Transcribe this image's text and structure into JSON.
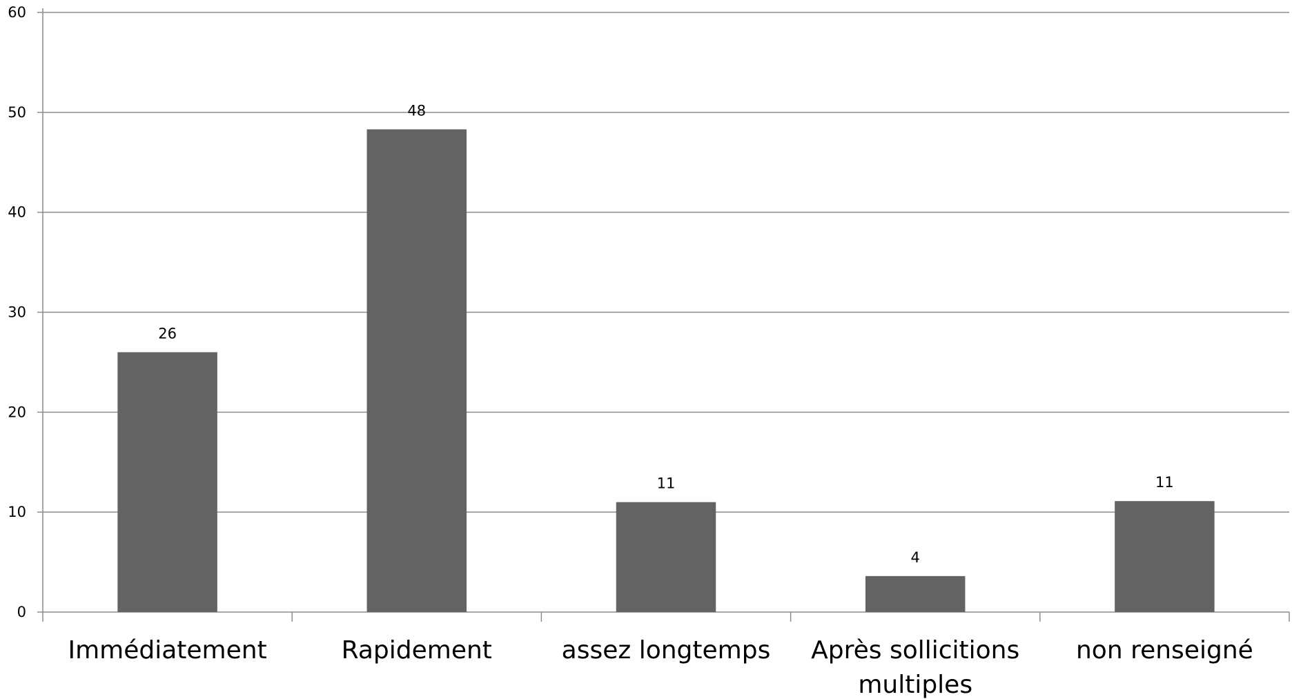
{
  "chart_data": {
    "type": "bar",
    "title": "",
    "xlabel": "",
    "ylabel": "",
    "categories": [
      [
        "Immédiatement"
      ],
      [
        "Rapidement"
      ],
      [
        "assez longtemps"
      ],
      [
        "Après sollicitions",
        "multiples"
      ],
      [
        "non renseigné"
      ]
    ],
    "values": [
      26,
      48.3,
      11,
      3.6,
      11.1
    ],
    "data_labels": [
      "26",
      "48",
      "11",
      "4",
      "11"
    ],
    "ylim": [
      0,
      60
    ],
    "yticks": [
      0,
      10,
      20,
      30,
      40,
      50,
      60
    ],
    "grid": true,
    "legend": "none",
    "colors": {
      "bar": "#636363",
      "grid": "#8c8c8c",
      "axis": "#8c8c8c",
      "text": "#000000"
    }
  }
}
